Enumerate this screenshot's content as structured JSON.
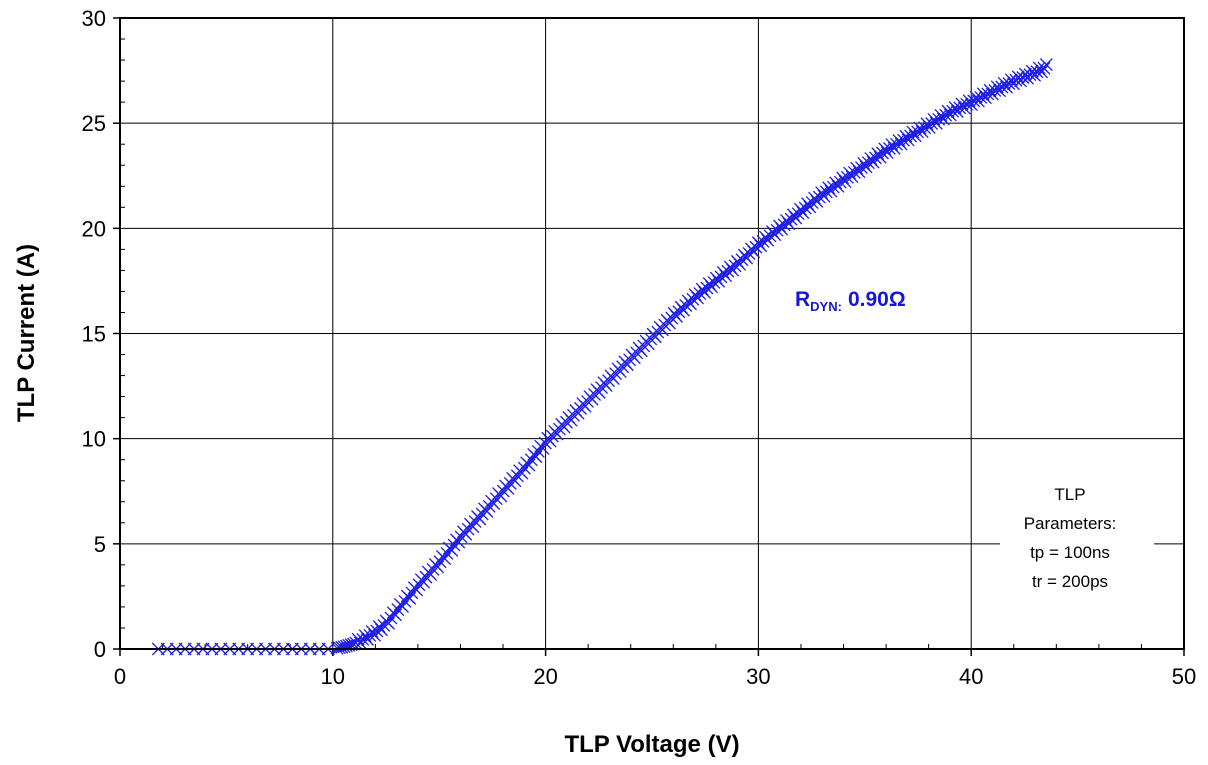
{
  "chart_data": {
    "type": "scatter",
    "title": "",
    "xlabel": "TLP Voltage (V)",
    "ylabel": "TLP Current (A)",
    "xlim": [
      0,
      50
    ],
    "ylim": [
      0,
      30
    ],
    "x_ticks": [
      0,
      10,
      20,
      30,
      40,
      50
    ],
    "y_ticks": [
      0,
      5,
      10,
      15,
      20,
      25,
      30
    ],
    "x_tick_labels": [
      "0",
      "10",
      "20",
      "30",
      "40",
      "50"
    ],
    "y_tick_labels": [
      "0",
      "5",
      "10",
      "15",
      "20",
      "25",
      "30"
    ],
    "grid": true,
    "marker": "x",
    "series": [
      {
        "name": "",
        "color": "#1e1ee6",
        "x": [
          1.8,
          2.5,
          3.0,
          3.5,
          4.0,
          4.5,
          5.0,
          5.5,
          6.0,
          6.5,
          7.0,
          7.5,
          8.0,
          8.5,
          9.0,
          9.5,
          10.0,
          10.5,
          11.0,
          11.5,
          12.0,
          12.5,
          13.0,
          13.5,
          14.0,
          15.0,
          16.0,
          17.0,
          18.0,
          19.0,
          20.0,
          21.0,
          22.0,
          23.0,
          24.0,
          25.0,
          26.0,
          27.0,
          28.0,
          29.0,
          30.0,
          31.0,
          32.0,
          33.0,
          34.0,
          35.0,
          36.0,
          37.0,
          38.0,
          39.0,
          40.0,
          41.0,
          42.0,
          43.0,
          43.6
        ],
        "y": [
          0.0,
          0.0,
          0.0,
          0.0,
          0.0,
          0.0,
          0.0,
          0.0,
          0.0,
          0.0,
          0.0,
          0.0,
          0.0,
          0.0,
          0.0,
          0.0,
          0.0,
          0.1,
          0.25,
          0.5,
          0.8,
          1.2,
          1.8,
          2.4,
          3.0,
          4.1,
          5.3,
          6.4,
          7.5,
          8.6,
          9.8,
          10.8,
          11.8,
          12.8,
          13.8,
          14.8,
          15.8,
          16.7,
          17.5,
          18.3,
          19.2,
          20.0,
          20.8,
          21.6,
          22.3,
          23.0,
          23.7,
          24.3,
          24.9,
          25.5,
          26.0,
          26.5,
          27.0,
          27.4,
          27.7
        ]
      }
    ]
  },
  "annotation": {
    "rdyn_main": "R",
    "rdyn_sub": "DYN:",
    "rdyn_value": "0.90Ω",
    "rdyn_color": "#1515e0"
  },
  "params_note": {
    "lines": [
      "TLP",
      "Parameters:",
      "tp = 100ns",
      "tr = 200ps"
    ]
  }
}
